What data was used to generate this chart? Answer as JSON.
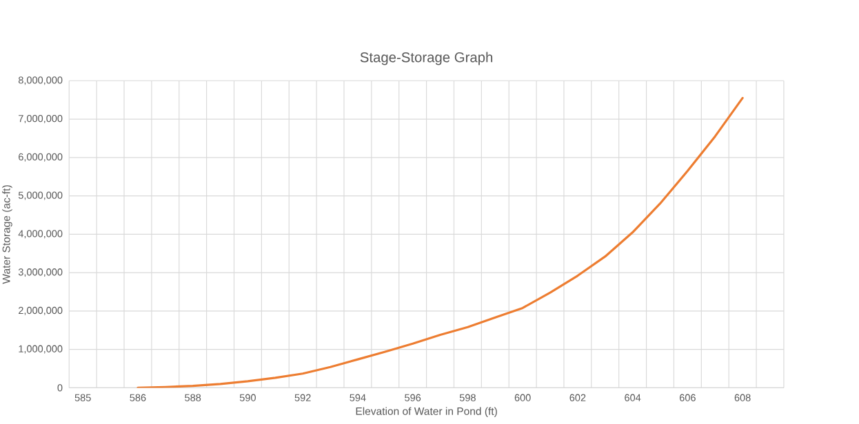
{
  "chart_data": {
    "type": "line",
    "title": "Stage-Storage Graph",
    "xlabel": "Elevation of Water in Pond (ft)",
    "ylabel": "Water Storage (ac-ft)",
    "categories": [
      "585",
      null,
      "586",
      null,
      "588",
      null,
      "590",
      null,
      "592",
      null,
      "594",
      null,
      "596",
      null,
      "598",
      null,
      "600",
      null,
      "602",
      null,
      "604",
      null,
      "606",
      null,
      "608",
      null
    ],
    "series": [
      {
        "color": "#ed7d31",
        "values": [
          null,
          null,
          0,
          20000,
          50000,
          100000,
          170000,
          260000,
          370000,
          540000,
          740000,
          940000,
          1150000,
          1380000,
          1580000,
          1830000,
          2080000,
          2480000,
          2920000,
          3420000,
          4050000,
          4800000,
          5650000,
          6550000,
          7550000,
          null
        ]
      }
    ],
    "ylim": [
      0,
      8000000
    ],
    "yticks": [
      0,
      {
        "value": 1000000,
        "label": "1,000,000"
      },
      {
        "value": 2000000,
        "label": "2,000,000"
      },
      {
        "value": 3000000,
        "label": "3,000,000"
      },
      {
        "value": 4000000,
        "label": "4,000,000"
      },
      {
        "value": 5000000,
        "label": "5,000,000"
      },
      {
        "value": 6000000,
        "label": "6,000,000"
      },
      {
        "value": 7000000,
        "label": "7,000,000"
      },
      {
        "value": 8000000,
        "label": "8,000,000"
      }
    ],
    "grid": true,
    "marker": "none",
    "line_style": "solid"
  }
}
